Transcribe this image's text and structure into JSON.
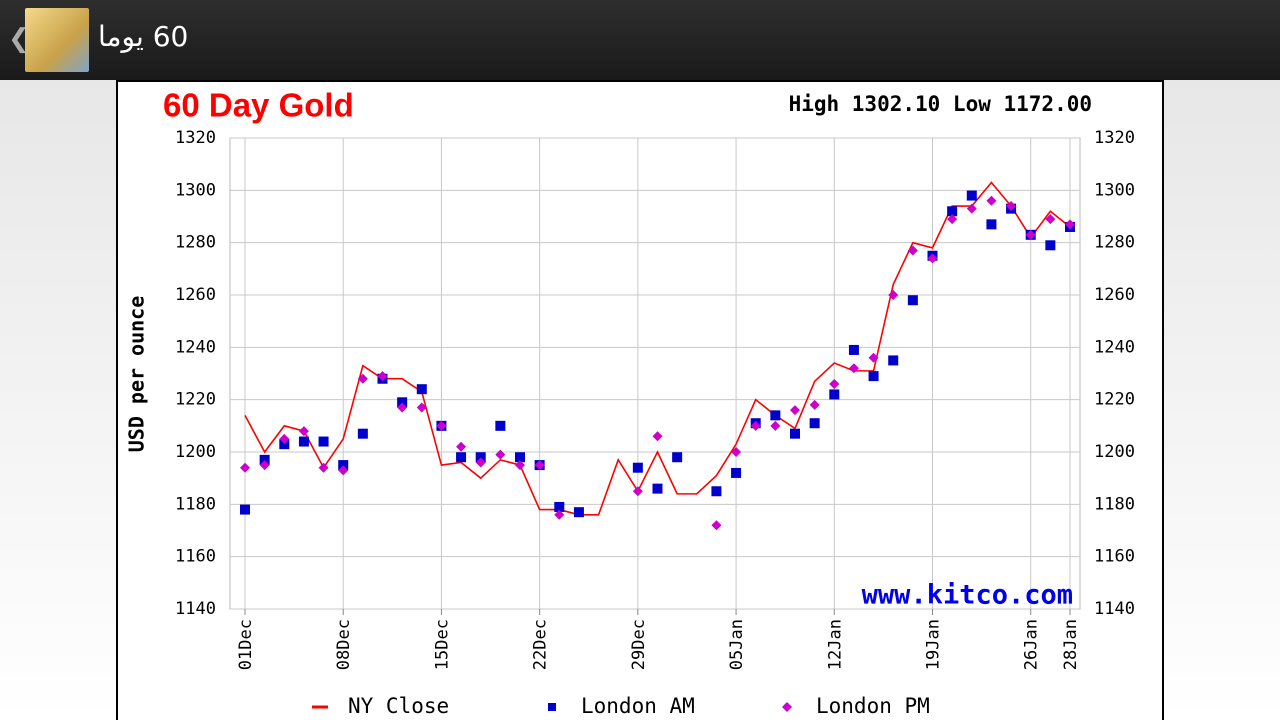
{
  "header": {
    "title": "60 يوما"
  },
  "chart_data": {
    "type": "line",
    "title": "60 Day Gold",
    "subtitle": "High 1302.10 Low 1172.00",
    "watermark": "www.kitco.com",
    "y_label": "USD per ounce",
    "categories": [
      "01Dec",
      null,
      null,
      null,
      null,
      "08Dec",
      null,
      null,
      null,
      null,
      "15Dec",
      null,
      null,
      null,
      null,
      "22Dec",
      null,
      null,
      null,
      null,
      "29Dec",
      null,
      null,
      null,
      null,
      "05Jan",
      null,
      null,
      null,
      null,
      "12Jan",
      null,
      null,
      null,
      null,
      "19Jan",
      null,
      null,
      null,
      null,
      "26Jan",
      null,
      "28Jan"
    ],
    "series": [
      {
        "name": "NY Close",
        "color": "#ff0000",
        "marker": "line",
        "values": [
          1214,
          1200,
          1210,
          1208,
          1194,
          1205,
          1233,
          1228,
          1228,
          1223,
          1195,
          1196,
          1190,
          1197,
          1195,
          1178,
          1178,
          1176,
          1176,
          1197,
          1185,
          1200,
          1184,
          1184,
          1191,
          1203,
          1220,
          1214,
          1209,
          1227,
          1234,
          1231,
          1231,
          1264,
          1280,
          1278,
          1294,
          1294,
          1303,
          1294,
          1282,
          1292,
          1286
        ]
      },
      {
        "name": "London AM",
        "color": "#0000cc",
        "marker": "square",
        "values": [
          1178,
          1197,
          1203,
          1204,
          1204,
          1195,
          1207,
          1228,
          1219,
          1224,
          1210,
          1198,
          1198,
          1210,
          1198,
          1195,
          1179,
          1177,
          null,
          null,
          1194,
          1186,
          1198,
          null,
          1185,
          1192,
          1211,
          1214,
          1207,
          1211,
          1222,
          1239,
          1229,
          1235,
          1258,
          1275,
          1292,
          1298,
          1287,
          1293,
          1283,
          1279,
          1286
        ]
      },
      {
        "name": "London PM",
        "color": "#cc00cc",
        "marker": "diamond",
        "values": [
          1194,
          1195,
          1205,
          1208,
          1194,
          1193,
          1228,
          1229,
          1217,
          1217,
          1210,
          1202,
          1196,
          1199,
          1195,
          1195,
          1176,
          null,
          null,
          null,
          1185,
          1206,
          null,
          null,
          1172,
          1200,
          1210,
          1210,
          1216,
          1218,
          1226,
          1232,
          1236,
          1260,
          1277,
          1274,
          1289,
          1293,
          1296,
          1294,
          1283,
          1289,
          1287
        ]
      }
    ],
    "ylim": [
      1140,
      1320
    ],
    "yticks": [
      1140,
      1160,
      1180,
      1200,
      1220,
      1240,
      1260,
      1280,
      1300,
      1320
    ],
    "grid": true
  }
}
